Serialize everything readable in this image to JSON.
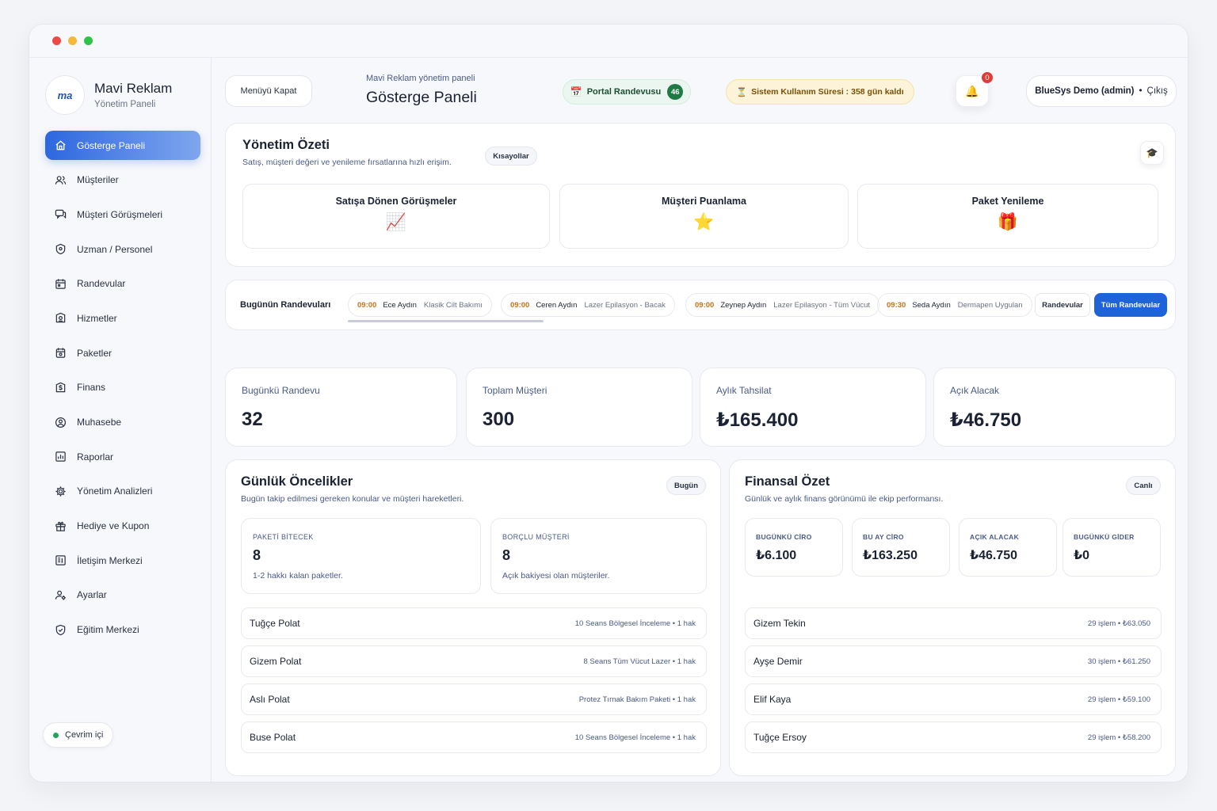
{
  "window": {
    "dots": [
      "#ec4a45",
      "#f5b83a",
      "#2fc449"
    ]
  },
  "brand": {
    "logo": "ma",
    "name": "Mavi Reklam",
    "subtitle": "Yönetim Paneli"
  },
  "sidebar": {
    "items": [
      {
        "label": "Gösterge Paneli",
        "icon": "home-icon",
        "active": true
      },
      {
        "label": "Müşteriler",
        "icon": "users-icon"
      },
      {
        "label": "Müşteri Görüşmeleri",
        "icon": "chat-icon"
      },
      {
        "label": "Uzman / Personel",
        "icon": "badge-icon"
      },
      {
        "label": "Randevular",
        "icon": "calendar-icon"
      },
      {
        "label": "Hizmetler",
        "icon": "service-icon"
      },
      {
        "label": "Paketler",
        "icon": "package-icon"
      },
      {
        "label": "Finans",
        "icon": "dollar-icon"
      },
      {
        "label": "Muhasebe",
        "icon": "accounting-icon"
      },
      {
        "label": "Raporlar",
        "icon": "report-icon"
      },
      {
        "label": "Yönetim Analizleri",
        "icon": "gear-icon"
      },
      {
        "label": "Hediye ve Kupon",
        "icon": "gift-icon"
      },
      {
        "label": "İletişim Merkezi",
        "icon": "contact-icon"
      },
      {
        "label": "Ayarlar",
        "icon": "settings-users-icon"
      },
      {
        "label": "Eğitim Merkezi",
        "icon": "shield-icon"
      }
    ],
    "status": "Çevrim içi"
  },
  "header": {
    "menu_button": "Menüyü Kapat",
    "breadcrumb": "Mavi Reklam yönetim paneli",
    "title": "Gösterge Paneli",
    "portal_label": "Portal Randevusu",
    "portal_count": "46",
    "usage_text": "Sistem Kullanım Süresi : 358 gün kaldı",
    "notif_count": "0",
    "user": "BlueSys Demo (admin)",
    "separator": "•",
    "logout": "Çıkış"
  },
  "summary": {
    "title": "Yönetim Özeti",
    "subtitle": "Satış, müşteri değeri ve yenileme fırsatlarına hızlı erişim.",
    "shortcuts_badge": "Kısayollar",
    "cards": [
      {
        "title": "Satışa Dönen Görüşmeler",
        "icon": "📈"
      },
      {
        "title": "Müşteri Puanlama",
        "icon": "⭐"
      },
      {
        "title": "Paket Yenileme",
        "icon": "🎁"
      }
    ]
  },
  "today": {
    "label": "Bugünün Randevuları",
    "appointments": [
      {
        "time": "09:00",
        "name": "Ece Aydın",
        "service": "Klasik Cilt Bakımı"
      },
      {
        "time": "09:00",
        "name": "Ceren Aydın",
        "service": "Lazer Epilasyon - Bacak"
      },
      {
        "time": "09:00",
        "name": "Zeynep Aydın",
        "service": "Lazer Epilasyon - Tüm Vücut"
      },
      {
        "time": "09:30",
        "name": "Seda Aydın",
        "service": "Dermapen Uygulan"
      }
    ],
    "btn_appointments": "Randevular",
    "btn_all": "Tüm Randevular"
  },
  "stats": [
    {
      "label": "Bugünkü Randevu",
      "value": "32"
    },
    {
      "label": "Toplam Müşteri",
      "value": "300"
    },
    {
      "label": "Aylık Tahsilat",
      "value": "₺165.400"
    },
    {
      "label": "Açık Alacak",
      "value": "₺46.750"
    }
  ],
  "priorities": {
    "title": "Günlük Öncelikler",
    "subtitle": "Bugün takip edilmesi gereken konular ve müşteri hareketleri.",
    "badge": "Bugün",
    "metrics": [
      {
        "label": "PAKETİ BİTECEK",
        "value": "8",
        "desc": "1-2 hakkı kalan paketler."
      },
      {
        "label": "BORÇLU MÜŞTERİ",
        "value": "8",
        "desc": "Açık bakiyesi olan müşteriler."
      }
    ],
    "rows": [
      {
        "name": "Tuğçe Polat",
        "detail": "10 Seans Bölgesel İnceleme • 1 hak"
      },
      {
        "name": "Gizem Polat",
        "detail": "8 Seans Tüm Vücut Lazer • 1 hak"
      },
      {
        "name": "Aslı Polat",
        "detail": "Protez Tırnak Bakım Paketi • 1 hak"
      },
      {
        "name": "Buse Polat",
        "detail": "10 Seans Bölgesel İnceleme • 1 hak"
      }
    ]
  },
  "finance": {
    "title": "Finansal Özet",
    "subtitle": "Günlük ve aylık finans görünümü ile ekip performansı.",
    "badge": "Canlı",
    "metrics": [
      {
        "label": "BUGÜNKÜ CİRO",
        "value": "₺6.100"
      },
      {
        "label": "BU AY CİRO",
        "value": "₺163.250"
      },
      {
        "label": "AÇIK ALACAK",
        "value": "₺46.750"
      },
      {
        "label": "BUGÜNKÜ GİDER",
        "value": "₺0"
      }
    ],
    "rows": [
      {
        "name": "Gizem Tekin",
        "detail": "29 işlem • ₺63.050"
      },
      {
        "name": "Ayşe Demir",
        "detail": "30 işlem • ₺61.250"
      },
      {
        "name": "Elif Kaya",
        "detail": "29 işlem • ₺59.100"
      },
      {
        "name": "Tuğçe Ersoy",
        "detail": "29 işlem • ₺58.200"
      }
    ]
  },
  "colors": {
    "accent": "#2d67e0",
    "primary_button": "#1f63d8",
    "online": "#22a55a",
    "portal_bg": "#eaf6ef",
    "usage_bg": "#fdf3d8",
    "alert": "#e23b35"
  }
}
